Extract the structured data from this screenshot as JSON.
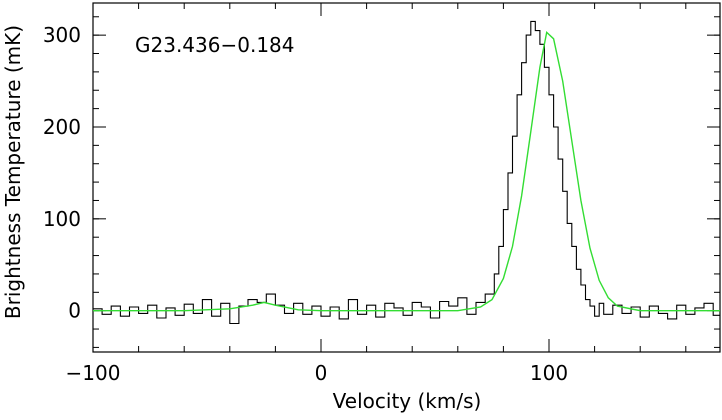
{
  "chart_data": {
    "type": "line",
    "title": "",
    "annotation": "G23.436−0.184",
    "xlabel": "Velocity (km/s)",
    "ylabel": "Brightness Temperature (mK)",
    "xlim": [
      -100,
      175
    ],
    "ylim": [
      -45,
      335
    ],
    "xticks": [
      -100,
      0,
      100
    ],
    "xtick_labels": [
      "−100",
      "0",
      "100"
    ],
    "yticks": [
      0,
      100,
      200,
      300
    ],
    "ytick_labels": [
      "0",
      "100",
      "200",
      "300"
    ],
    "x_minor_step": 20,
    "y_minor_step": 20,
    "grid": false,
    "colors": {
      "spectrum": "#000000",
      "fit": "#33dd33",
      "axes": "#000000"
    },
    "series": [
      {
        "kind": "observed-spectrum",
        "style": "step",
        "x": [
          -100,
          -96,
          -92,
          -88,
          -84,
          -80,
          -76,
          -72,
          -68,
          -64,
          -60,
          -56,
          -52,
          -48,
          -44,
          -40,
          -36,
          -32,
          -28,
          -24,
          -20,
          -16,
          -12,
          -8,
          -4,
          0,
          4,
          8,
          12,
          16,
          20,
          24,
          28,
          32,
          36,
          40,
          44,
          48,
          52,
          56,
          60,
          64,
          68,
          72,
          76,
          78,
          80,
          82,
          84,
          86,
          88,
          90,
          92,
          94,
          96,
          98,
          100,
          102,
          104,
          106,
          108,
          110,
          112,
          114,
          116,
          118,
          120,
          122,
          124,
          128,
          132,
          136,
          140,
          144,
          148,
          152,
          156,
          160,
          164,
          168,
          172
        ],
        "y": [
          2,
          -4,
          5,
          -6,
          4,
          -3,
          6,
          -8,
          3,
          -5,
          7,
          -3,
          12,
          -6,
          8,
          -14,
          5,
          12,
          9,
          18,
          6,
          -3,
          8,
          -4,
          5,
          -6,
          4,
          -9,
          12,
          -4,
          6,
          -7,
          8,
          3,
          -5,
          9,
          4,
          -8,
          10,
          5,
          14,
          -4,
          9,
          18,
          40,
          70,
          110,
          150,
          190,
          235,
          270,
          300,
          315,
          305,
          290,
          265,
          235,
          200,
          165,
          130,
          95,
          70,
          45,
          28,
          12,
          5,
          -6,
          8,
          -4,
          6,
          -3,
          4,
          -7,
          5,
          -3,
          -9,
          6,
          -4,
          3,
          8,
          -5
        ]
      },
      {
        "kind": "gaussian-fit",
        "style": "line",
        "x": [
          -100,
          -80,
          -60,
          -40,
          -30,
          -25,
          -20,
          -10,
          0,
          20,
          40,
          60,
          70,
          75,
          80,
          84,
          88,
          92,
          96,
          99,
          102,
          106,
          110,
          114,
          118,
          122,
          126,
          130,
          140,
          160,
          175
        ],
        "y": [
          0,
          0,
          0,
          2,
          6,
          9,
          6,
          1,
          0,
          0,
          0,
          0,
          4,
          12,
          35,
          70,
          125,
          195,
          265,
          303,
          296,
          250,
          185,
          120,
          68,
          33,
          14,
          5,
          0,
          0,
          0
        ]
      }
    ]
  }
}
